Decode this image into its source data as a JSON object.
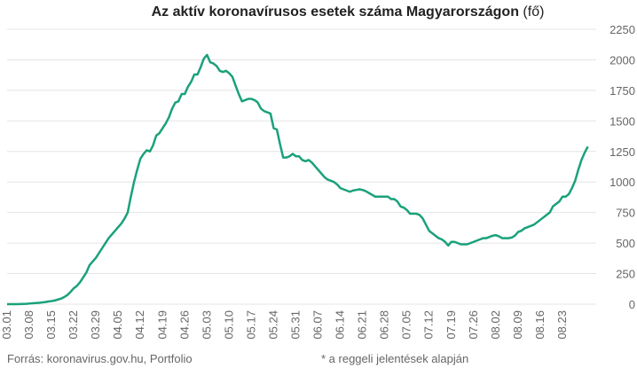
{
  "chart_data": {
    "type": "line",
    "title": "Az aktív koronavírusos esetek száma Magyarországon",
    "title_unit": "(fő)",
    "source": "Forrás: koronavirus.gov.hu, Portfolio",
    "note": "* a reggeli jelentések alapján",
    "categories": [
      "03.01",
      null,
      null,
      null,
      null,
      null,
      null,
      "03.08",
      null,
      null,
      null,
      null,
      null,
      null,
      "03.15",
      null,
      null,
      null,
      null,
      null,
      null,
      "03.22",
      null,
      null,
      null,
      null,
      null,
      null,
      "03.29",
      null,
      null,
      null,
      null,
      null,
      null,
      "04.05",
      null,
      null,
      null,
      null,
      null,
      null,
      "04.12",
      null,
      null,
      null,
      null,
      null,
      null,
      "04.19",
      null,
      null,
      null,
      null,
      null,
      null,
      "04.26",
      null,
      null,
      null,
      null,
      null,
      null,
      "05.03",
      null,
      null,
      null,
      null,
      null,
      null,
      "05.10",
      null,
      null,
      null,
      null,
      null,
      null,
      "05.17",
      null,
      null,
      null,
      null,
      null,
      null,
      "05.24",
      null,
      null,
      null,
      null,
      null,
      null,
      "05.31",
      null,
      null,
      null,
      null,
      null,
      null,
      "06.07",
      null,
      null,
      null,
      null,
      null,
      null,
      "06.14",
      null,
      null,
      null,
      null,
      null,
      null,
      "06.21",
      null,
      null,
      null,
      null,
      null,
      null,
      "06.28",
      null,
      null,
      null,
      null,
      null,
      null,
      "07.05",
      null,
      null,
      null,
      null,
      null,
      null,
      "07.12",
      null,
      null,
      null,
      null,
      null,
      null,
      "07.19",
      null,
      null,
      null,
      null,
      null,
      null,
      "07.26",
      null,
      null,
      null,
      null,
      null,
      null,
      "08.02",
      null,
      null,
      null,
      null,
      null,
      null,
      "08.09",
      null,
      null,
      null,
      null,
      null,
      null,
      "08.16",
      null,
      null,
      null,
      null,
      null,
      null,
      "08.23",
      null,
      null,
      null,
      null,
      null,
      null,
      null,
      null
    ],
    "series": [
      {
        "color": "#1aa17b",
        "values": [
          0,
          0,
          0,
          0,
          1,
          2,
          3,
          5,
          7,
          9,
          11,
          14,
          17,
          22,
          25,
          30,
          38,
          45,
          58,
          75,
          100,
          130,
          150,
          180,
          220,
          260,
          320,
          350,
          380,
          420,
          460,
          500,
          540,
          570,
          600,
          630,
          660,
          700,
          750,
          880,
          1000,
          1100,
          1190,
          1230,
          1260,
          1250,
          1300,
          1380,
          1400,
          1440,
          1480,
          1530,
          1600,
          1650,
          1660,
          1720,
          1720,
          1780,
          1820,
          1880,
          1880,
          1940,
          2010,
          2040,
          1980,
          1970,
          1950,
          1910,
          1900,
          1910,
          1890,
          1860,
          1790,
          1720,
          1660,
          1670,
          1680,
          1680,
          1670,
          1650,
          1600,
          1580,
          1570,
          1560,
          1440,
          1430,
          1310,
          1200,
          1200,
          1210,
          1230,
          1210,
          1210,
          1180,
          1170,
          1180,
          1160,
          1130,
          1100,
          1070,
          1040,
          1020,
          1010,
          1000,
          980,
          950,
          940,
          930,
          920,
          930,
          935,
          940,
          935,
          925,
          910,
          895,
          880,
          880,
          880,
          880,
          880,
          860,
          860,
          840,
          800,
          790,
          770,
          740,
          740,
          740,
          730,
          700,
          650,
          600,
          580,
          560,
          540,
          530,
          510,
          480,
          510,
          510,
          500,
          490,
          490,
          490,
          500,
          510,
          520,
          530,
          540,
          540,
          550,
          560,
          565,
          555,
          540,
          540,
          540,
          545,
          560,
          590,
          600,
          620,
          630,
          640,
          650,
          670,
          690,
          710,
          730,
          750,
          800,
          820,
          840,
          880,
          880,
          900,
          950,
          1010,
          1100,
          1180,
          1240,
          1290
        ]
      }
    ],
    "ylim": [
      0,
      2250
    ],
    "yticks": [
      0,
      250,
      500,
      750,
      1000,
      1250,
      1500,
      1750,
      2000,
      2250
    ],
    "grid": true
  }
}
